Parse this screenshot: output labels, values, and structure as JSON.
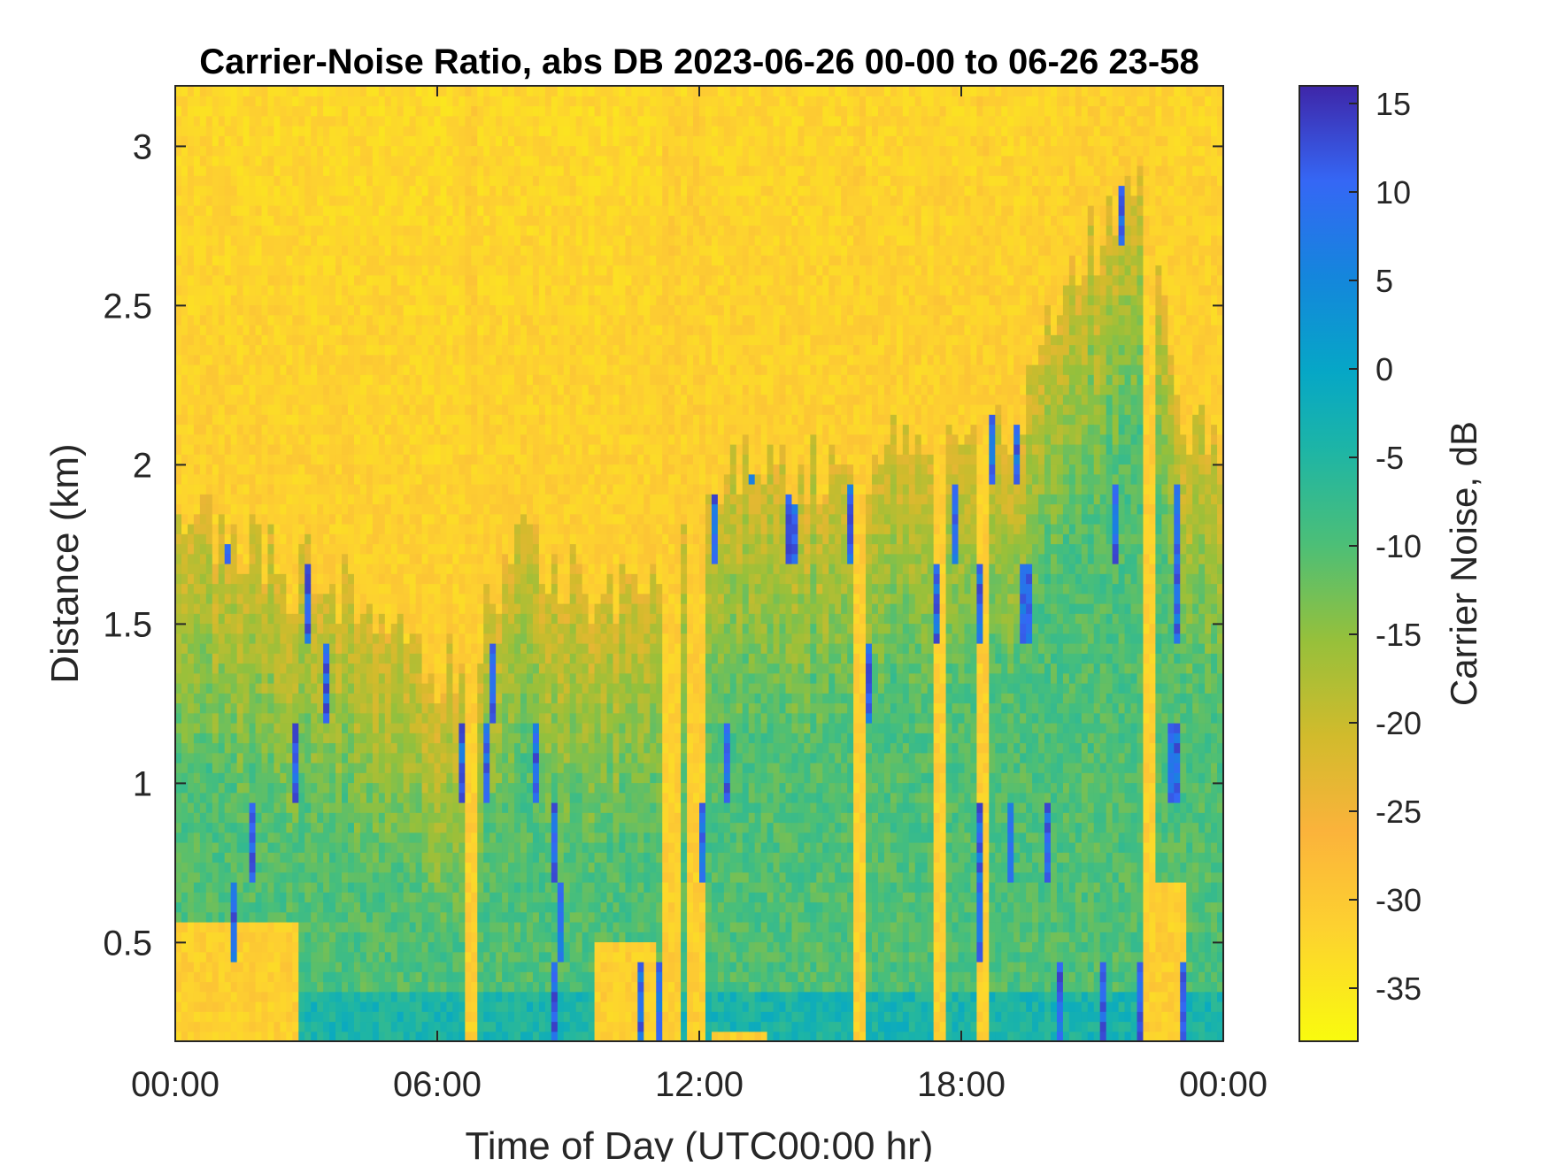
{
  "chart_data": {
    "type": "heatmap",
    "title": "Carrier-Noise Ratio, abs DB 2023-06-26 00-00 to 06-26 23-58",
    "xlabel": "Time of Day (UTC00:00 hr)",
    "ylabel": "Distance (km)",
    "x_range_hours": [
      0,
      24
    ],
    "xticks": [
      {
        "value": 0,
        "label": "00:00"
      },
      {
        "value": 6,
        "label": "06:00"
      },
      {
        "value": 12,
        "label": "12:00"
      },
      {
        "value": 18,
        "label": "18:00"
      },
      {
        "value": 24,
        "label": "00:00"
      }
    ],
    "ylim": [
      0.19,
      3.19
    ],
    "yticks": [
      {
        "value": 0.5,
        "label": "0.5"
      },
      {
        "value": 1,
        "label": "1"
      },
      {
        "value": 1.5,
        "label": "1.5"
      },
      {
        "value": 2,
        "label": "2"
      },
      {
        "value": 2.5,
        "label": "2.5"
      },
      {
        "value": 3,
        "label": "3"
      }
    ],
    "colorbar": {
      "label": "Carrier Noise, dB",
      "range": [
        -38,
        16
      ],
      "ticks": [
        15,
        10,
        5,
        0,
        -5,
        -10,
        -15,
        -20,
        -25,
        -30,
        -35
      ],
      "colormap": "parula"
    },
    "grid": false,
    "field_description": {
      "low_dB_region": "yellow/orange (about -30 to -35 dB) dominating above ~1.8 km and in narrow vertical gaps near 06:45, 11:30-12:10, 18:30 and 22:40",
      "high_dB_region": "green/cyan (about -20 to -8 dB) boundary layer below ~1.5 km, rising to ~2.5 km after 18:00",
      "peak_dB": "blue/purple streaks (0 to 15 dB) near the surface and in thin vertical plumes"
    }
  }
}
